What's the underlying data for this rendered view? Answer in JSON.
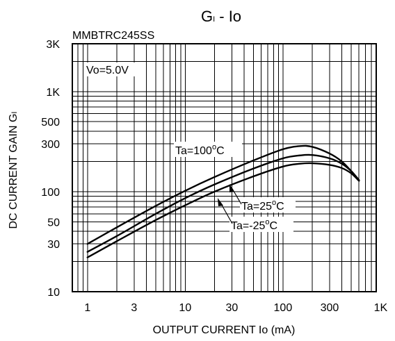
{
  "chart_data": {
    "type": "line",
    "title_main": "G",
    "title_sub": "I",
    "title_rest": " - Io",
    "subtitle": "MMBTRC245SS",
    "xlabel": "OUTPUT CURRENT Io (mA)",
    "ylabel_main": "DC CURRENT GAIN G",
    "ylabel_sub": "I",
    "x_scale": "log",
    "y_scale": "log",
    "xlim": [
      0.7,
      900
    ],
    "ylim": [
      10,
      3000
    ],
    "x_ticks": [
      {
        "value": 1,
        "label": "1"
      },
      {
        "value": 3,
        "label": "3"
      },
      {
        "value": 10,
        "label": "10"
      },
      {
        "value": 30,
        "label": "30"
      },
      {
        "value": 100,
        "label": "100"
      },
      {
        "value": 300,
        "label": "300"
      },
      {
        "value": 1000,
        "label": "1K"
      }
    ],
    "y_ticks": [
      {
        "value": 10,
        "label": "10"
      },
      {
        "value": 30,
        "label": "30"
      },
      {
        "value": 50,
        "label": "50"
      },
      {
        "value": 100,
        "label": "100"
      },
      {
        "value": 300,
        "label": "300"
      },
      {
        "value": 500,
        "label": "500"
      },
      {
        "value": 1000,
        "label": "1K"
      },
      {
        "value": 3000,
        "label": "3K"
      }
    ],
    "grid": true,
    "condition": "Vo=5.0V",
    "series": [
      {
        "name": "Ta=100°C",
        "label_prefix": "Ta=100",
        "label_suffix": "C",
        "x": [
          1,
          2,
          5,
          10,
          20,
          50,
          100,
          150,
          200,
          300,
          400,
          500,
          600
        ],
        "y": [
          30,
          44,
          72,
          102,
          140,
          205,
          265,
          285,
          280,
          240,
          200,
          160,
          130
        ]
      },
      {
        "name": "Ta=25°C",
        "label_prefix": "Ta=25",
        "label_suffix": "C",
        "x": [
          1,
          2,
          5,
          10,
          20,
          50,
          100,
          150,
          200,
          300,
          400,
          500,
          600
        ],
        "y": [
          25,
          36,
          60,
          86,
          118,
          170,
          215,
          230,
          232,
          215,
          190,
          160,
          130
        ]
      },
      {
        "name": "Ta=-25°C",
        "label_prefix": "Ta=-25",
        "label_suffix": "C",
        "x": [
          1,
          2,
          5,
          10,
          20,
          50,
          100,
          150,
          200,
          300,
          400,
          500,
          600
        ],
        "y": [
          22,
          32,
          52,
          73,
          100,
          142,
          178,
          190,
          192,
          185,
          172,
          152,
          128
        ]
      }
    ]
  }
}
